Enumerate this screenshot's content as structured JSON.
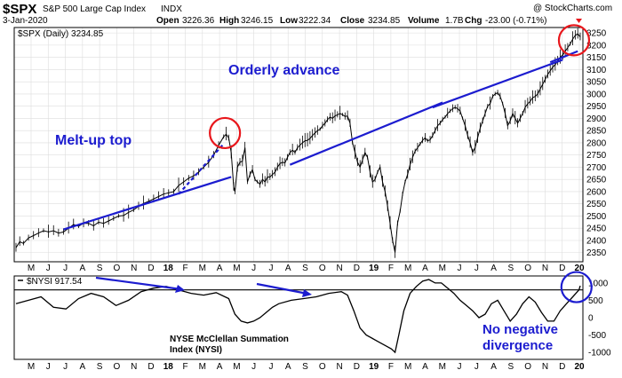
{
  "header": {
    "symbol": "$SPX",
    "name": "S&P 500 Large Cap Index",
    "exchange": "INDX",
    "watermark": "@ StockCharts.com",
    "date": "3-Jan-2020",
    "open_label": "Open",
    "open": "3226.36",
    "high_label": "High",
    "high": "3246.15",
    "low_label": "Low",
    "low": "3222.34",
    "close_label": "Close",
    "close": "3234.85",
    "volume_label": "Volume",
    "volume": "1.7B",
    "chg_label": "Chg",
    "chg": "-23.00 (-0.71%)"
  },
  "price_legend": "$SPX (Daily) 3234.85",
  "nysi_legend": "$NYSI 917.54",
  "annotations": {
    "melt_up": "Melt-up top",
    "orderly": "Orderly advance",
    "nysi_title_1": "NYSE McClellan Summation",
    "nysi_title_2": "Index (NYSI)",
    "no_div_1": "No negative",
    "no_div_2": "divergence"
  },
  "colors": {
    "price_line": "#000000",
    "annotation_blue": "#1c1ccf",
    "circle_red": "#e8171c",
    "grid": "#dddddd"
  },
  "chart_data": [
    {
      "type": "line",
      "title": "$SPX (Daily)",
      "x_labels": [
        "M",
        "J",
        "J",
        "A",
        "S",
        "O",
        "N",
        "D",
        "18",
        "F",
        "M",
        "A",
        "M",
        "J",
        "J",
        "A",
        "S",
        "O",
        "N",
        "D",
        "19",
        "F",
        "M",
        "A",
        "M",
        "J",
        "J",
        "A",
        "S",
        "O",
        "N",
        "D",
        "20"
      ],
      "y_ticks": [
        2350,
        2400,
        2450,
        2500,
        2550,
        2600,
        2650,
        2700,
        2750,
        2800,
        2850,
        2900,
        2950,
        3000,
        3050,
        3100,
        3150,
        3200,
        3250
      ],
      "ylim": [
        2320,
        3265
      ],
      "grid": true,
      "series": [
        {
          "values": [
            [
              0,
              2370
            ],
            [
              3,
              2395
            ],
            [
              6,
              2388
            ],
            [
              10,
              2410
            ],
            [
              14,
              2420
            ],
            [
              18,
              2430
            ],
            [
              22,
              2440
            ],
            [
              26,
              2435
            ],
            [
              30,
              2440
            ],
            [
              34,
              2430
            ],
            [
              38,
              2435
            ],
            [
              42,
              2450
            ],
            [
              46,
              2465
            ],
            [
              50,
              2458
            ],
            [
              54,
              2470
            ],
            [
              58,
              2470
            ],
            [
              62,
              2460
            ],
            [
              66,
              2475
            ],
            [
              70,
              2470
            ],
            [
              74,
              2480
            ],
            [
              78,
              2490
            ],
            [
              82,
              2500
            ],
            [
              86,
              2502
            ],
            [
              90,
              2515
            ],
            [
              94,
              2525
            ],
            [
              98,
              2540
            ],
            [
              102,
              2552
            ],
            [
              106,
              2560
            ],
            [
              110,
              2570
            ],
            [
              114,
              2580
            ],
            [
              118,
              2590
            ],
            [
              122,
              2595
            ],
            [
              126,
              2600
            ],
            [
              130,
              2625
            ],
            [
              134,
              2640
            ],
            [
              138,
              2655
            ],
            [
              142,
              2665
            ],
            [
              146,
              2680
            ],
            [
              150,
              2700
            ],
            [
              154,
              2720
            ],
            [
              158,
              2750
            ],
            [
              162,
              2790
            ],
            [
              166,
              2825
            ],
            [
              168,
              2835
            ],
            [
              170,
              2820
            ],
            [
              172,
              2760
            ],
            [
              174,
              2620
            ],
            [
              175,
              2600
            ],
            [
              177,
              2700
            ],
            [
              179,
              2720
            ],
            [
              181,
              2725
            ],
            [
              183,
              2780
            ],
            [
              185,
              2640
            ],
            [
              187,
              2670
            ],
            [
              189,
              2690
            ],
            [
              191,
              2650
            ],
            [
              193,
              2640
            ],
            [
              195,
              2630
            ],
            [
              197,
              2650
            ],
            [
              199,
              2640
            ],
            [
              201,
              2660
            ],
            [
              203,
              2660
            ],
            [
              205,
              2670
            ],
            [
              207,
              2680
            ],
            [
              209,
              2700
            ],
            [
              211,
              2715
            ],
            [
              213,
              2720
            ],
            [
              215,
              2718
            ],
            [
              217,
              2740
            ],
            [
              219,
              2760
            ],
            [
              221,
              2770
            ],
            [
              223,
              2760
            ],
            [
              225,
              2780
            ],
            [
              227,
              2790
            ],
            [
              229,
              2800
            ],
            [
              231,
              2808
            ],
            [
              233,
              2810
            ],
            [
              235,
              2818
            ],
            [
              237,
              2830
            ],
            [
              239,
              2840
            ],
            [
              241,
              2850
            ],
            [
              243,
              2855
            ],
            [
              245,
              2870
            ],
            [
              247,
              2880
            ],
            [
              249,
              2895
            ],
            [
              251,
              2905
            ],
            [
              253,
              2900
            ],
            [
              255,
              2910
            ],
            [
              257,
              2915
            ],
            [
              259,
              2920
            ],
            [
              261,
              2915
            ],
            [
              263,
              2908
            ],
            [
              265,
              2910
            ],
            [
              267,
              2880
            ],
            [
              269,
              2800
            ],
            [
              271,
              2760
            ],
            [
              273,
              2720
            ],
            [
              275,
              2700
            ],
            [
              277,
              2730
            ],
            [
              279,
              2760
            ],
            [
              281,
              2740
            ],
            [
              283,
              2680
            ],
            [
              285,
              2640
            ],
            [
              287,
              2650
            ],
            [
              289,
              2680
            ],
            [
              291,
              2700
            ],
            [
              293,
              2640
            ],
            [
              295,
              2600
            ],
            [
              297,
              2540
            ],
            [
              299,
              2470
            ],
            [
              301,
              2400
            ],
            [
              303,
              2351
            ],
            [
              305,
              2470
            ],
            [
              307,
              2520
            ],
            [
              309,
              2590
            ],
            [
              311,
              2640
            ],
            [
              313,
              2670
            ],
            [
              315,
              2710
            ],
            [
              317,
              2740
            ],
            [
              319,
              2765
            ],
            [
              321,
              2780
            ],
            [
              323,
              2795
            ],
            [
              325,
              2810
            ],
            [
              327,
              2820
            ],
            [
              329,
              2808
            ],
            [
              331,
              2812
            ],
            [
              333,
              2830
            ],
            [
              335,
              2850
            ],
            [
              337,
              2870
            ],
            [
              339,
              2880
            ],
            [
              341,
              2895
            ],
            [
              343,
              2905
            ],
            [
              345,
              2920
            ],
            [
              347,
              2930
            ],
            [
              349,
              2940
            ],
            [
              351,
              2945
            ],
            [
              353,
              2940
            ],
            [
              355,
              2930
            ],
            [
              357,
              2900
            ],
            [
              359,
              2870
            ],
            [
              361,
              2830
            ],
            [
              363,
              2800
            ],
            [
              365,
              2760
            ],
            [
              367,
              2780
            ],
            [
              369,
              2820
            ],
            [
              371,
              2860
            ],
            [
              373,
              2890
            ],
            [
              375,
              2920
            ],
            [
              377,
              2950
            ],
            [
              379,
              2960
            ],
            [
              381,
              2990
            ],
            [
              383,
              3000
            ],
            [
              385,
              3005
            ],
            [
              387,
              2990
            ],
            [
              389,
              2960
            ],
            [
              391,
              2920
            ],
            [
              393,
              2870
            ],
            [
              395,
              2890
            ],
            [
              397,
              2920
            ],
            [
              399,
              2900
            ],
            [
              401,
              2880
            ],
            [
              403,
              2900
            ],
            [
              405,
              2920
            ],
            [
              407,
              2945
            ],
            [
              409,
              2960
            ],
            [
              411,
              2970
            ],
            [
              413,
              2985
            ],
            [
              415,
              2990
            ],
            [
              417,
              3000
            ],
            [
              419,
              3020
            ],
            [
              421,
              3040
            ],
            [
              423,
              3060
            ],
            [
              425,
              3080
            ],
            [
              427,
              3095
            ],
            [
              429,
              3110
            ],
            [
              431,
              3120
            ],
            [
              433,
              3135
            ],
            [
              435,
              3150
            ],
            [
              437,
              3160
            ],
            [
              439,
              3175
            ],
            [
              441,
              3190
            ],
            [
              443,
              3205
            ],
            [
              445,
              3225
            ],
            [
              447,
              3240
            ],
            [
              449,
              3246
            ],
            [
              451,
              3234
            ]
          ]
        }
      ]
    },
    {
      "type": "line",
      "title": "$NYSI",
      "y_ticks": [
        1000,
        500,
        0,
        -500,
        -1000
      ],
      "ylim": [
        -1150,
        1150
      ],
      "reference_line": 800,
      "series": [
        {
          "values": [
            [
              0,
              400
            ],
            [
              10,
              500
            ],
            [
              20,
              600
            ],
            [
              30,
              300
            ],
            [
              40,
              250
            ],
            [
              50,
              550
            ],
            [
              60,
              700
            ],
            [
              70,
              600
            ],
            [
              80,
              350
            ],
            [
              90,
              500
            ],
            [
              100,
              750
            ],
            [
              110,
              850
            ],
            [
              120,
              900
            ],
            [
              130,
              800
            ],
            [
              140,
              700
            ],
            [
              150,
              650
            ],
            [
              160,
              720
            ],
            [
              170,
              550
            ],
            [
              175,
              100
            ],
            [
              180,
              -100
            ],
            [
              185,
              -150
            ],
            [
              190,
              -100
            ],
            [
              195,
              0
            ],
            [
              200,
              150
            ],
            [
              205,
              300
            ],
            [
              210,
              400
            ],
            [
              220,
              500
            ],
            [
              230,
              550
            ],
            [
              240,
              600
            ],
            [
              250,
              700
            ],
            [
              260,
              750
            ],
            [
              265,
              650
            ],
            [
              270,
              200
            ],
            [
              275,
              -300
            ],
            [
              280,
              -500
            ],
            [
              285,
              -600
            ],
            [
              290,
              -700
            ],
            [
              295,
              -800
            ],
            [
              300,
              -900
            ],
            [
              303,
              -1000
            ],
            [
              306,
              -500
            ],
            [
              310,
              200
            ],
            [
              315,
              700
            ],
            [
              320,
              900
            ],
            [
              325,
              1050
            ],
            [
              330,
              1100
            ],
            [
              335,
              1000
            ],
            [
              340,
              1000
            ],
            [
              345,
              850
            ],
            [
              350,
              700
            ],
            [
              355,
              500
            ],
            [
              360,
              350
            ],
            [
              365,
              200
            ],
            [
              370,
              0
            ],
            [
              375,
              100
            ],
            [
              380,
              400
            ],
            [
              385,
              500
            ],
            [
              390,
              200
            ],
            [
              395,
              -100
            ],
            [
              400,
              100
            ],
            [
              405,
              400
            ],
            [
              410,
              600
            ],
            [
              415,
              450
            ],
            [
              420,
              150
            ],
            [
              425,
              -100
            ],
            [
              430,
              -100
            ],
            [
              435,
              200
            ],
            [
              440,
              400
            ],
            [
              445,
              600
            ],
            [
              450,
              800
            ],
            [
              451,
              917
            ]
          ]
        }
      ]
    }
  ]
}
